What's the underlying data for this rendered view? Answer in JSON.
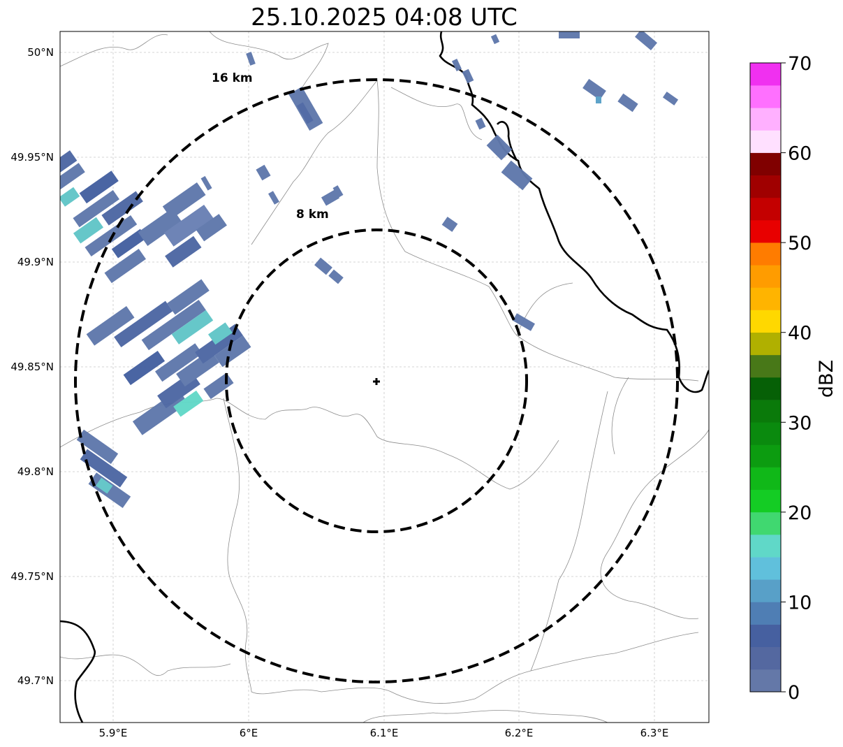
{
  "title": "25.10.2025 04:08 UTC",
  "axes": {
    "x_ticks": [
      "5.9°E",
      "6°E",
      "6.1°E",
      "6.2°E",
      "6.3°E"
    ],
    "y_ticks": [
      "50°N",
      "49.95°N",
      "49.9°N",
      "49.85°N",
      "49.8°N",
      "49.75°N",
      "49.7°N"
    ],
    "lon_range": [
      5.86,
      6.34
    ],
    "lat_range": [
      49.68,
      50.01
    ],
    "grid": true
  },
  "radar_site": {
    "lon": 6.095,
    "lat": 49.843,
    "marker": "plus"
  },
  "range_rings": [
    {
      "label": "8 km"
    },
    {
      "label": "16 km"
    }
  ],
  "colorbar": {
    "title": "dBZ",
    "tick_labels": [
      "0",
      "10",
      "20",
      "30",
      "40",
      "50",
      "60",
      "70"
    ],
    "min": 0,
    "max": 70,
    "colors": [
      "#6478a8",
      "#5468a0",
      "#4660a0",
      "#4f7eb4",
      "#58a0c8",
      "#60c0dc",
      "#60d8c8",
      "#40d870",
      "#14cc24",
      "#10b818",
      "#0c9c10",
      "#0a8a0e",
      "#0a7a0a",
      "#066006",
      "#487818",
      "#b0b000",
      "#ffd800",
      "#ffb400",
      "#ff9c00",
      "#ff7c00",
      "#e80000",
      "#c40000",
      "#a00000",
      "#800000",
      "#ffe0ff",
      "#ffb0ff",
      "#ff70ff",
      "#f030f0"
    ]
  }
}
